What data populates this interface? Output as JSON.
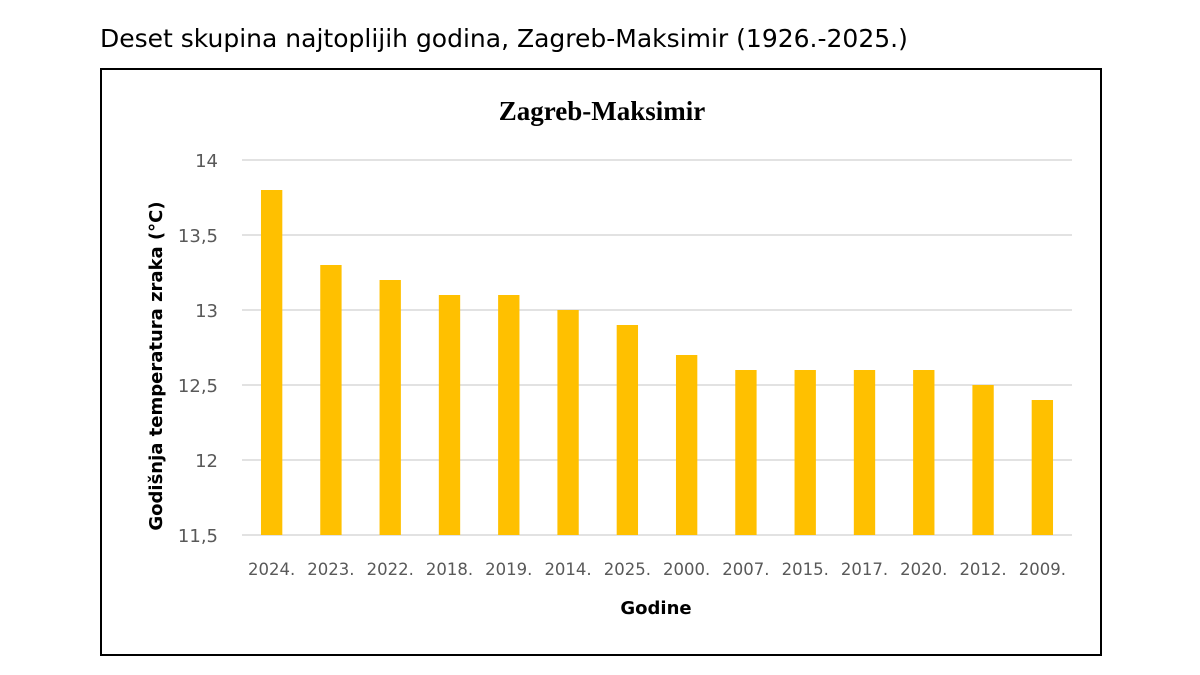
{
  "heading": "Deset skupina najtoplijih godina, Zagreb-Maksimir (1926.-2025.)",
  "chart_data": {
    "type": "bar",
    "title": "Zagreb-Maksimir",
    "xlabel": "Godine",
    "ylabel": "Godišnja temperatura zraka (°C)",
    "ylim": [
      11.5,
      14
    ],
    "yticks": [
      "11,5",
      "12",
      "12,5",
      "13",
      "13,5",
      "14"
    ],
    "grid": true,
    "bar_color": "#FFC000",
    "categories": [
      "2024.",
      "2023.",
      "2022.",
      "2018.",
      "2019.",
      "2014.",
      "2025.",
      "2000.",
      "2007.",
      "2015.",
      "2017.",
      "2020.",
      "2012.",
      "2009."
    ],
    "values": [
      13.8,
      13.3,
      13.2,
      13.1,
      13.1,
      13.0,
      12.9,
      12.7,
      12.6,
      12.6,
      12.6,
      12.6,
      12.5,
      12.4
    ]
  }
}
